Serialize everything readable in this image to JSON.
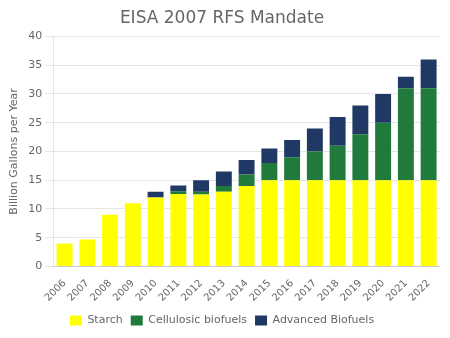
{
  "chart_data": {
    "type": "bar",
    "title": "EISA 2007 RFS Mandate",
    "y_label": "Billion Gallons per Year",
    "categories": [
      "2006",
      "2007",
      "2008",
      "2009",
      "2010",
      "2011",
      "2012",
      "2013",
      "2014",
      "2015",
      "2016",
      "2017",
      "2018",
      "2019",
      "2020",
      "2021",
      "2022"
    ],
    "series": [
      {
        "name": "Starch",
        "color": "#FFFF00",
        "values": [
          4.0,
          4.7,
          9.0,
          11.0,
          12.0,
          12.6,
          12.5,
          13.0,
          14.0,
          15.0,
          15.0,
          15.0,
          15.0,
          15.0,
          15.0,
          15.0,
          15.0
        ]
      },
      {
        "name": "Cellulosic biofuels",
        "color": "#1F7A3C",
        "values": [
          0.0,
          0.0,
          0.0,
          0.0,
          0.0,
          0.5,
          0.5,
          1.0,
          2.0,
          3.0,
          4.0,
          5.0,
          6.0,
          8.0,
          10.0,
          16.0,
          16.0
        ]
      },
      {
        "name": "Advanced Biofuels",
        "color": "#1F3864",
        "values": [
          0.0,
          0.0,
          0.0,
          0.0,
          1.0,
          1.0,
          2.0,
          2.5,
          2.5,
          2.5,
          3.0,
          4.0,
          5.0,
          5.0,
          5.0,
          2.0,
          5.0
        ]
      }
    ],
    "stacked": true,
    "ylim": [
      0,
      40
    ],
    "yticks": [
      0,
      5,
      10,
      15,
      20,
      25,
      30,
      35,
      40
    ],
    "grid": true,
    "legend": "bottom"
  }
}
